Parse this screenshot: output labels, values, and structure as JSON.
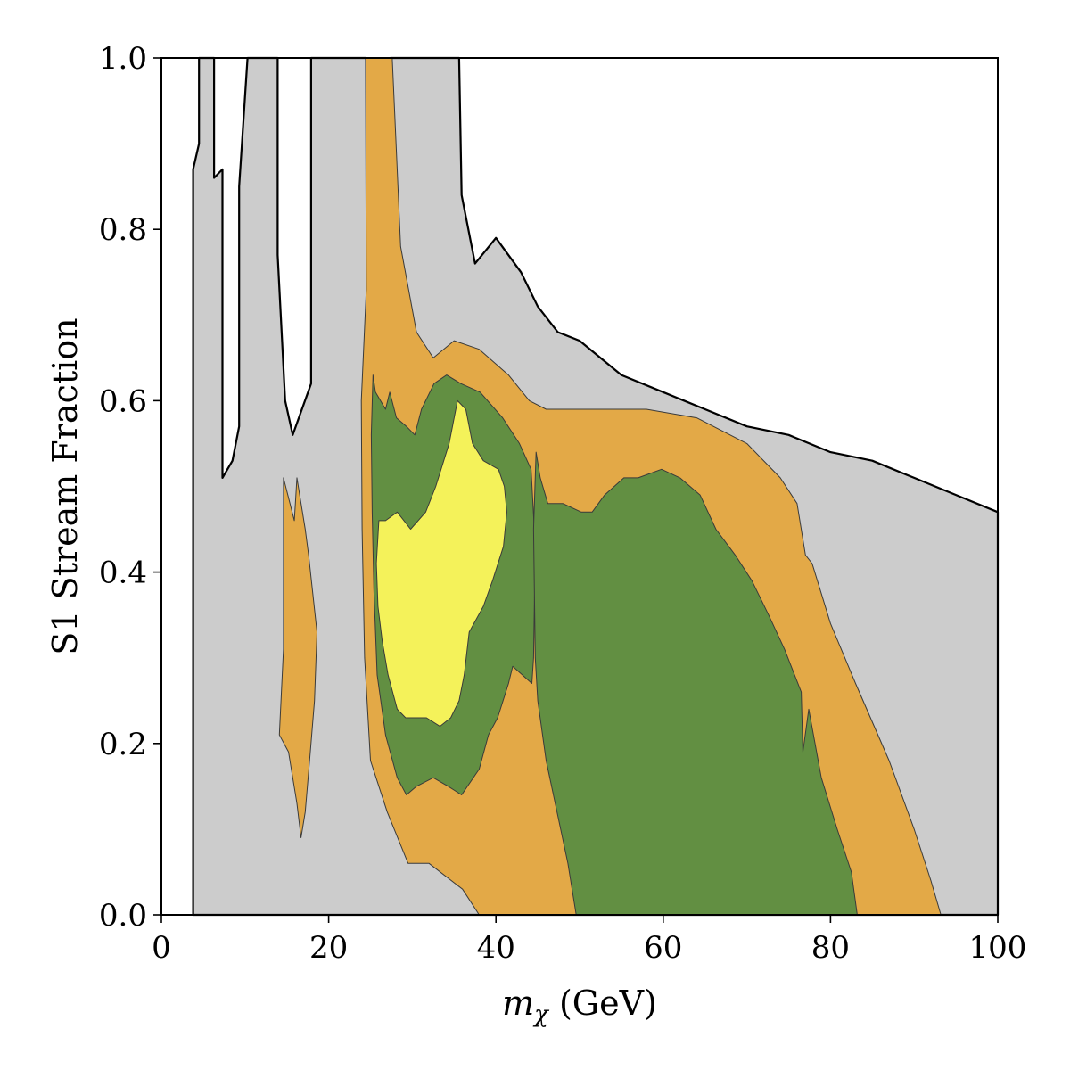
{
  "chart_data": {
    "type": "contour",
    "title": "",
    "xlabel_var": "m",
    "xlabel_sub": "χ",
    "xlabel_unit": " (GeV)",
    "ylabel": "S1 Stream Fraction",
    "xlim": [
      0,
      100
    ],
    "ylim": [
      0,
      1
    ],
    "xticks": [
      0,
      20,
      40,
      60,
      80,
      100
    ],
    "yticks": [
      0.0,
      0.2,
      0.4,
      0.6,
      0.8,
      1.0
    ],
    "ytick_labels": [
      "0.0",
      "0.2",
      "0.4",
      "0.6",
      "0.8",
      "1.0"
    ],
    "grid": false,
    "legend": "none",
    "colors": {
      "allowed_region": "#cccccc",
      "outer_contour": "#e3a947",
      "middle_contour": "#628f42",
      "inner_contour": "#f4f25a",
      "boundary_line": "#000000"
    },
    "regions": [
      {
        "name": "allowed-region",
        "fill": "#cccccc",
        "polygon": [
          [
            3.8,
            0
          ],
          [
            3.8,
            0.87
          ],
          [
            4.5,
            0.9
          ],
          [
            4.5,
            1.0
          ],
          [
            6.3,
            1.0
          ],
          [
            6.3,
            0.86
          ],
          [
            7.3,
            0.87
          ],
          [
            7.3,
            0.51
          ],
          [
            8.5,
            0.53
          ],
          [
            9.3,
            0.57
          ],
          [
            9.3,
            0.85
          ],
          [
            10.3,
            1.0
          ],
          [
            13.9,
            1.0
          ],
          [
            13.9,
            0.77
          ],
          [
            14.8,
            0.6
          ],
          [
            15.7,
            0.56
          ],
          [
            17.9,
            0.62
          ],
          [
            17.9,
            1.0
          ],
          [
            24.4,
            1.0
          ],
          [
            26.1,
            0.98
          ],
          [
            27.4,
            1.0
          ],
          [
            35.6,
            1.0
          ],
          [
            35.9,
            0.84
          ],
          [
            37.5,
            0.76
          ],
          [
            40.0,
            0.79
          ],
          [
            43.0,
            0.75
          ],
          [
            45.0,
            0.71
          ],
          [
            47.4,
            0.68
          ],
          [
            50.0,
            0.67
          ],
          [
            55.0,
            0.63
          ],
          [
            60.0,
            0.61
          ],
          [
            65.0,
            0.59
          ],
          [
            70.0,
            0.57
          ],
          [
            75.0,
            0.56
          ],
          [
            80.0,
            0.54
          ],
          [
            85.0,
            0.53
          ],
          [
            90.0,
            0.51
          ],
          [
            95.0,
            0.49
          ],
          [
            100.0,
            0.47
          ],
          [
            100.0,
            0
          ]
        ]
      },
      {
        "name": "outer-contour-left",
        "fill": "#e3a947",
        "polygon": [
          [
            14.6,
            0.51
          ],
          [
            15.9,
            0.46
          ],
          [
            16.2,
            0.51
          ],
          [
            17.2,
            0.45
          ],
          [
            17.6,
            0.42
          ],
          [
            18.6,
            0.33
          ],
          [
            18.3,
            0.25
          ],
          [
            17.8,
            0.19
          ],
          [
            17.2,
            0.12
          ],
          [
            16.7,
            0.09
          ],
          [
            16.2,
            0.13
          ],
          [
            15.2,
            0.19
          ],
          [
            14.1,
            0.21
          ],
          [
            14.6,
            0.31
          ]
        ]
      },
      {
        "name": "outer-contour-main",
        "fill": "#e3a947",
        "polygon": [
          [
            24.5,
            0.73
          ],
          [
            24.4,
            1.0
          ],
          [
            27.6,
            1.0
          ],
          [
            28.6,
            0.78
          ],
          [
            30.5,
            0.68
          ],
          [
            32.5,
            0.65
          ],
          [
            35.0,
            0.67
          ],
          [
            38.0,
            0.66
          ],
          [
            41.5,
            0.63
          ],
          [
            44.0,
            0.6
          ],
          [
            46.0,
            0.59
          ],
          [
            50.0,
            0.59
          ],
          [
            58.0,
            0.59
          ],
          [
            64.0,
            0.58
          ],
          [
            70.0,
            0.55
          ],
          [
            74.0,
            0.51
          ],
          [
            76.0,
            0.48
          ],
          [
            77.0,
            0.42
          ],
          [
            77.8,
            0.41
          ],
          [
            80.0,
            0.34
          ],
          [
            83.0,
            0.27
          ],
          [
            87.0,
            0.18
          ],
          [
            90.0,
            0.1
          ],
          [
            92.0,
            0.04
          ],
          [
            93.2,
            0
          ],
          [
            38.0,
            0
          ],
          [
            36.0,
            0.03
          ],
          [
            32.0,
            0.06
          ],
          [
            29.5,
            0.06
          ],
          [
            27.0,
            0.12
          ],
          [
            25.0,
            0.18
          ],
          [
            24.3,
            0.3
          ],
          [
            24.0,
            0.45
          ],
          [
            23.9,
            0.6
          ]
        ]
      },
      {
        "name": "middle-contour-left",
        "fill": "#628f42",
        "polygon": [
          [
            25.3,
            0.63
          ],
          [
            25.6,
            0.61
          ],
          [
            26.8,
            0.59
          ],
          [
            27.3,
            0.61
          ],
          [
            28.1,
            0.58
          ],
          [
            29.3,
            0.57
          ],
          [
            30.3,
            0.56
          ],
          [
            31.1,
            0.59
          ],
          [
            32.6,
            0.62
          ],
          [
            34.1,
            0.63
          ],
          [
            35.8,
            0.62
          ],
          [
            38.1,
            0.61
          ],
          [
            40.8,
            0.58
          ],
          [
            42.8,
            0.55
          ],
          [
            44.2,
            0.52
          ],
          [
            44.7,
            0.43
          ],
          [
            44.5,
            0.3
          ],
          [
            44.3,
            0.27
          ],
          [
            42.0,
            0.29
          ],
          [
            41.5,
            0.27
          ],
          [
            40.2,
            0.23
          ],
          [
            39.1,
            0.21
          ],
          [
            38.0,
            0.17
          ],
          [
            35.9,
            0.14
          ],
          [
            34.3,
            0.15
          ],
          [
            32.5,
            0.16
          ],
          [
            30.5,
            0.15
          ],
          [
            29.3,
            0.14
          ],
          [
            28.2,
            0.16
          ],
          [
            26.8,
            0.21
          ],
          [
            25.8,
            0.28
          ],
          [
            25.4,
            0.38
          ],
          [
            25.2,
            0.47
          ],
          [
            25.1,
            0.56
          ]
        ]
      },
      {
        "name": "middle-contour-right",
        "fill": "#628f42",
        "polygon": [
          [
            44.8,
            0.54
          ],
          [
            45.3,
            0.51
          ],
          [
            46.2,
            0.48
          ],
          [
            48.0,
            0.48
          ],
          [
            50.2,
            0.47
          ],
          [
            51.5,
            0.47
          ],
          [
            53.0,
            0.49
          ],
          [
            55.3,
            0.51
          ],
          [
            57.0,
            0.51
          ],
          [
            59.8,
            0.52
          ],
          [
            62.0,
            0.51
          ],
          [
            64.4,
            0.49
          ],
          [
            66.3,
            0.45
          ],
          [
            68.6,
            0.42
          ],
          [
            70.6,
            0.39
          ],
          [
            72.6,
            0.35
          ],
          [
            74.5,
            0.31
          ],
          [
            76.5,
            0.26
          ],
          [
            76.7,
            0.19
          ],
          [
            77.4,
            0.24
          ],
          [
            78.9,
            0.16
          ],
          [
            80.8,
            0.1
          ],
          [
            82.5,
            0.05
          ],
          [
            83.2,
            0
          ],
          [
            49.6,
            0
          ],
          [
            48.6,
            0.06
          ],
          [
            47.3,
            0.12
          ],
          [
            46.0,
            0.18
          ],
          [
            45.0,
            0.25
          ],
          [
            44.7,
            0.3
          ],
          [
            44.5,
            0.45
          ]
        ]
      },
      {
        "name": "inner-contour",
        "fill": "#f4f25a",
        "polygon": [
          [
            26.0,
            0.46
          ],
          [
            26.8,
            0.46
          ],
          [
            28.2,
            0.47
          ],
          [
            29.8,
            0.45
          ],
          [
            31.6,
            0.47
          ],
          [
            32.8,
            0.5
          ],
          [
            34.4,
            0.55
          ],
          [
            35.4,
            0.6
          ],
          [
            36.4,
            0.59
          ],
          [
            37.2,
            0.55
          ],
          [
            38.5,
            0.53
          ],
          [
            40.3,
            0.52
          ],
          [
            41.0,
            0.5
          ],
          [
            41.3,
            0.47
          ],
          [
            40.9,
            0.43
          ],
          [
            39.6,
            0.39
          ],
          [
            38.5,
            0.36
          ],
          [
            36.8,
            0.33
          ],
          [
            36.2,
            0.28
          ],
          [
            35.6,
            0.25
          ],
          [
            34.6,
            0.23
          ],
          [
            33.3,
            0.22
          ],
          [
            31.7,
            0.23
          ],
          [
            30.4,
            0.23
          ],
          [
            29.2,
            0.23
          ],
          [
            28.2,
            0.24
          ],
          [
            27.1,
            0.28
          ],
          [
            26.4,
            0.32
          ],
          [
            25.9,
            0.36
          ],
          [
            25.7,
            0.41
          ]
        ]
      }
    ]
  }
}
